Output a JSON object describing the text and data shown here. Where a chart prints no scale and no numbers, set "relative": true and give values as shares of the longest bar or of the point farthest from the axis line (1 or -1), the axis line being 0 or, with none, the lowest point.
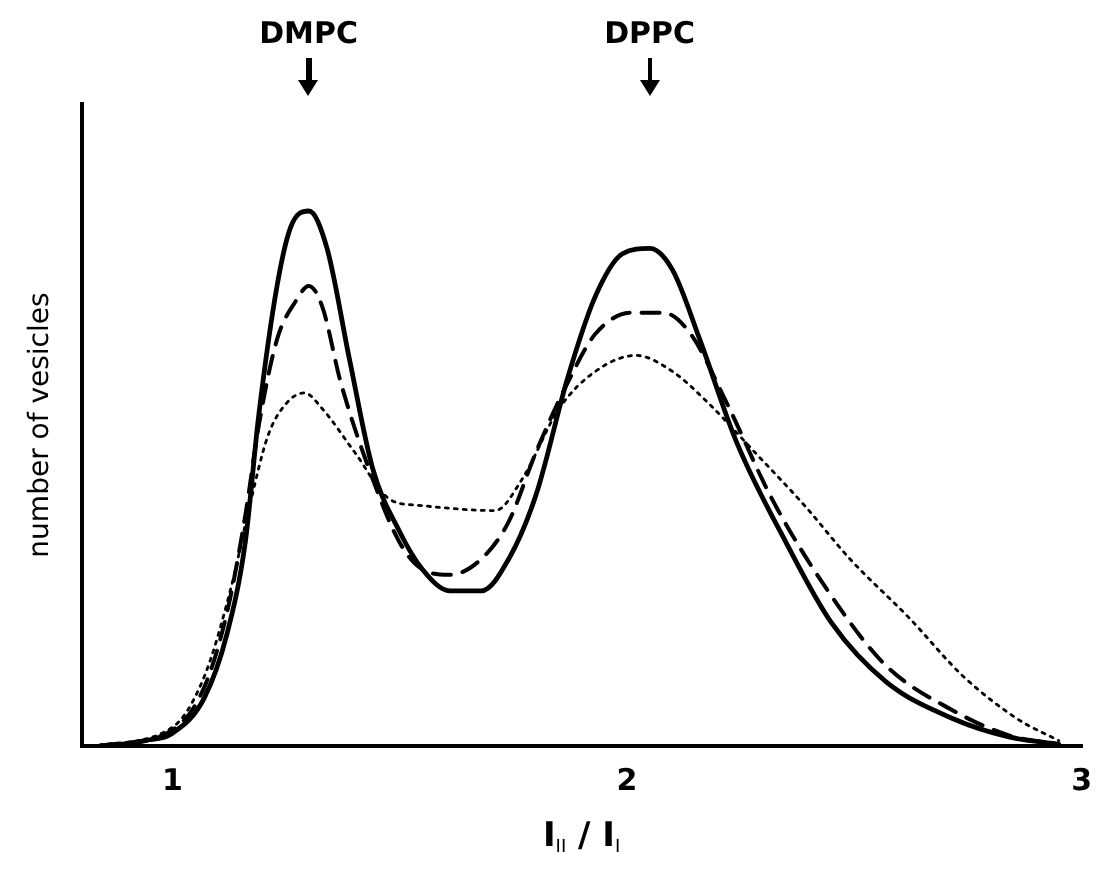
{
  "chart_data": {
    "type": "line",
    "relative": true,
    "xlabel": "I$_{II}$ / I$_{I}$",
    "ylabel": "number of vesicles",
    "xlim": [
      0.8,
      3.0
    ],
    "xticks": [
      1,
      2,
      3
    ],
    "grid": false,
    "legend": false,
    "marker": "none",
    "annotations": [
      "DMPC",
      "DPPC"
    ],
    "series": [
      {
        "color": "#000000",
        "line_style": "solid",
        "x": [
          0.86,
          0.94,
          1.0,
          1.07,
          1.12,
          1.16,
          1.19,
          1.23,
          1.26,
          1.3,
          1.34,
          1.39,
          1.44,
          1.5,
          1.55,
          1.61,
          1.68,
          1.74,
          1.8,
          1.87,
          1.93,
          1.99,
          2.05,
          2.1,
          2.16,
          2.24,
          2.35,
          2.45,
          2.57,
          2.72,
          2.84,
          2.95
        ],
        "values": [
          0,
          0.01,
          0.024,
          0.09,
          0.21,
          0.38,
          0.62,
          0.86,
          0.97,
          1.0,
          0.93,
          0.72,
          0.52,
          0.4,
          0.33,
          0.29,
          0.29,
          0.35,
          0.47,
          0.69,
          0.84,
          0.92,
          0.93,
          0.89,
          0.76,
          0.57,
          0.38,
          0.23,
          0.12,
          0.05,
          0.017,
          0.003
        ]
      },
      {
        "color": "#000000",
        "line_style": "dashed",
        "x": [
          0.84,
          1.0,
          1.07,
          1.12,
          1.16,
          1.19,
          1.23,
          1.27,
          1.3,
          1.33,
          1.37,
          1.44,
          1.5,
          1.55,
          1.61,
          1.68,
          1.74,
          1.8,
          1.87,
          1.93,
          2.01,
          2.08,
          2.14,
          2.22,
          2.32,
          2.45,
          2.57,
          2.72,
          2.84,
          2.95
        ],
        "values": [
          0,
          0.03,
          0.11,
          0.25,
          0.43,
          0.6,
          0.76,
          0.83,
          0.86,
          0.82,
          0.68,
          0.5,
          0.38,
          0.33,
          0.32,
          0.35,
          0.42,
          0.55,
          0.68,
          0.77,
          0.81,
          0.81,
          0.77,
          0.64,
          0.46,
          0.28,
          0.15,
          0.065,
          0.02,
          0.003
        ]
      },
      {
        "color": "#000000",
        "line_style": "dotted",
        "x": [
          0.82,
          1.0,
          1.07,
          1.13,
          1.17,
          1.21,
          1.25,
          1.29,
          1.33,
          1.4,
          1.48,
          1.54,
          1.71,
          1.77,
          1.85,
          1.93,
          2.02,
          2.1,
          2.18,
          2.28,
          2.39,
          2.49,
          2.62,
          2.74,
          2.86,
          2.95
        ],
        "values": [
          0,
          0.035,
          0.13,
          0.3,
          0.45,
          0.58,
          0.64,
          0.66,
          0.63,
          0.55,
          0.46,
          0.45,
          0.44,
          0.5,
          0.63,
          0.7,
          0.73,
          0.7,
          0.64,
          0.55,
          0.45,
          0.35,
          0.24,
          0.13,
          0.05,
          0.01
        ]
      }
    ]
  }
}
